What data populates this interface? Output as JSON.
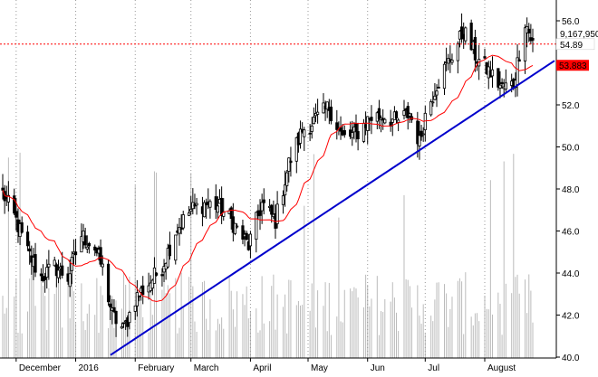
{
  "chart_data": {
    "type": "candlestick",
    "x_tick_labels": [
      "December",
      "2016",
      "February",
      "March",
      "April",
      "May",
      "Jun",
      "Jul",
      "August"
    ],
    "y_tick_labels": [
      "40.0",
      "42.0",
      "44.0",
      "46.0",
      "48.0",
      "50.0",
      "52.0",
      "54.0",
      "56.0"
    ],
    "ylim": [
      40.0,
      56.8
    ],
    "grid": "vertical dotted at month starts",
    "last_price": {
      "label": "54.89",
      "value": 54.89,
      "color": "#ff0000",
      "line_value": 54.89
    },
    "moving_average_last": {
      "label": "53.883",
      "value": 53.883,
      "color": "#ff0000"
    },
    "volume_label": "9,167,950",
    "trendline": {
      "color": "#0000cc",
      "start_value": 40.1,
      "end_value": 54.1
    },
    "moving_average_color": "#ff0000",
    "candle_color": "#000000",
    "volume_color": "#bbbbbb",
    "anchor_points": [
      [
        "2015-11-24",
        47.8
      ],
      [
        "2015-12-01",
        46.5
      ],
      [
        "2015-12-07",
        45.0
      ],
      [
        "2015-12-14",
        43.8
      ],
      [
        "2015-12-21",
        44.3
      ],
      [
        "2015-12-28",
        43.8
      ],
      [
        "2016-01-04",
        45.8
      ],
      [
        "2016-01-11",
        45.2
      ],
      [
        "2016-01-15",
        44.2
      ],
      [
        "2016-01-20",
        42.0
      ],
      [
        "2016-01-26",
        41.3
      ],
      [
        "2016-02-01",
        42.8
      ],
      [
        "2016-02-08",
        43.5
      ],
      [
        "2016-02-15",
        44.3
      ],
      [
        "2016-02-22",
        46.0
      ],
      [
        "2016-03-01",
        47.0
      ],
      [
        "2016-03-08",
        47.3
      ],
      [
        "2016-03-15",
        47.2
      ],
      [
        "2016-03-22",
        46.5
      ],
      [
        "2016-03-31",
        45.3
      ],
      [
        "2016-04-07",
        47.3
      ],
      [
        "2016-04-14",
        46.5
      ],
      [
        "2016-04-21",
        49.2
      ],
      [
        "2016-04-28",
        50.8
      ],
      [
        "2016-05-05",
        51.3
      ],
      [
        "2016-05-12",
        51.9
      ],
      [
        "2016-05-19",
        50.4
      ],
      [
        "2016-05-26",
        50.6
      ],
      [
        "2016-06-02",
        51.4
      ],
      [
        "2016-06-09",
        51.5
      ],
      [
        "2016-06-16",
        51.2
      ],
      [
        "2016-06-23",
        51.6
      ],
      [
        "2016-06-28",
        50.2
      ],
      [
        "2016-07-01",
        51.5
      ],
      [
        "2016-07-07",
        53.0
      ],
      [
        "2016-07-14",
        54.2
      ],
      [
        "2016-07-21",
        55.5
      ],
      [
        "2016-07-28",
        54.2
      ],
      [
        "2016-08-04",
        53.5
      ],
      [
        "2016-08-10",
        52.8
      ],
      [
        "2016-08-16",
        53.0
      ],
      [
        "2016-08-22",
        56.0
      ],
      [
        "2016-08-26",
        54.9
      ]
    ]
  }
}
